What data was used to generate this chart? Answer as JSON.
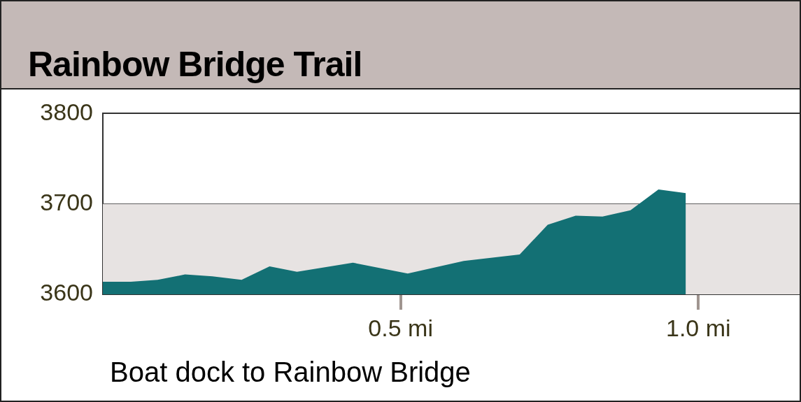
{
  "chart_data": {
    "type": "area",
    "title": "Rainbow Bridge Trail",
    "annotations": [
      "Boat dock to Rainbow Bridge"
    ],
    "x": [
      0,
      0.047,
      0.092,
      0.138,
      0.184,
      0.233,
      0.28,
      0.326,
      0.42,
      0.512,
      0.606,
      0.7,
      0.747,
      0.794,
      0.839,
      0.886,
      0.933,
      0.979
    ],
    "series": [
      {
        "color": "#137074",
        "values": [
          3614,
          3614,
          3616,
          3622,
          3620,
          3616,
          3631,
          3625,
          3635,
          3623,
          3637,
          3644,
          3677,
          3687,
          3686,
          3693,
          3716,
          3712
        ]
      }
    ],
    "xlim": [
      0,
      1.17
    ],
    "xticks": [
      {
        "value": 0.5,
        "label": "0.5 mi"
      },
      {
        "value": 1.0,
        "label": "1.0 mi"
      }
    ],
    "ylim": [
      3600,
      3800
    ],
    "yticks": [
      3600,
      3700,
      3800
    ],
    "bands": [
      {
        "axis": "y",
        "from": 3600,
        "to": 3700,
        "color": "#e7e3e2"
      }
    ],
    "grid": "y",
    "legend": false
  }
}
